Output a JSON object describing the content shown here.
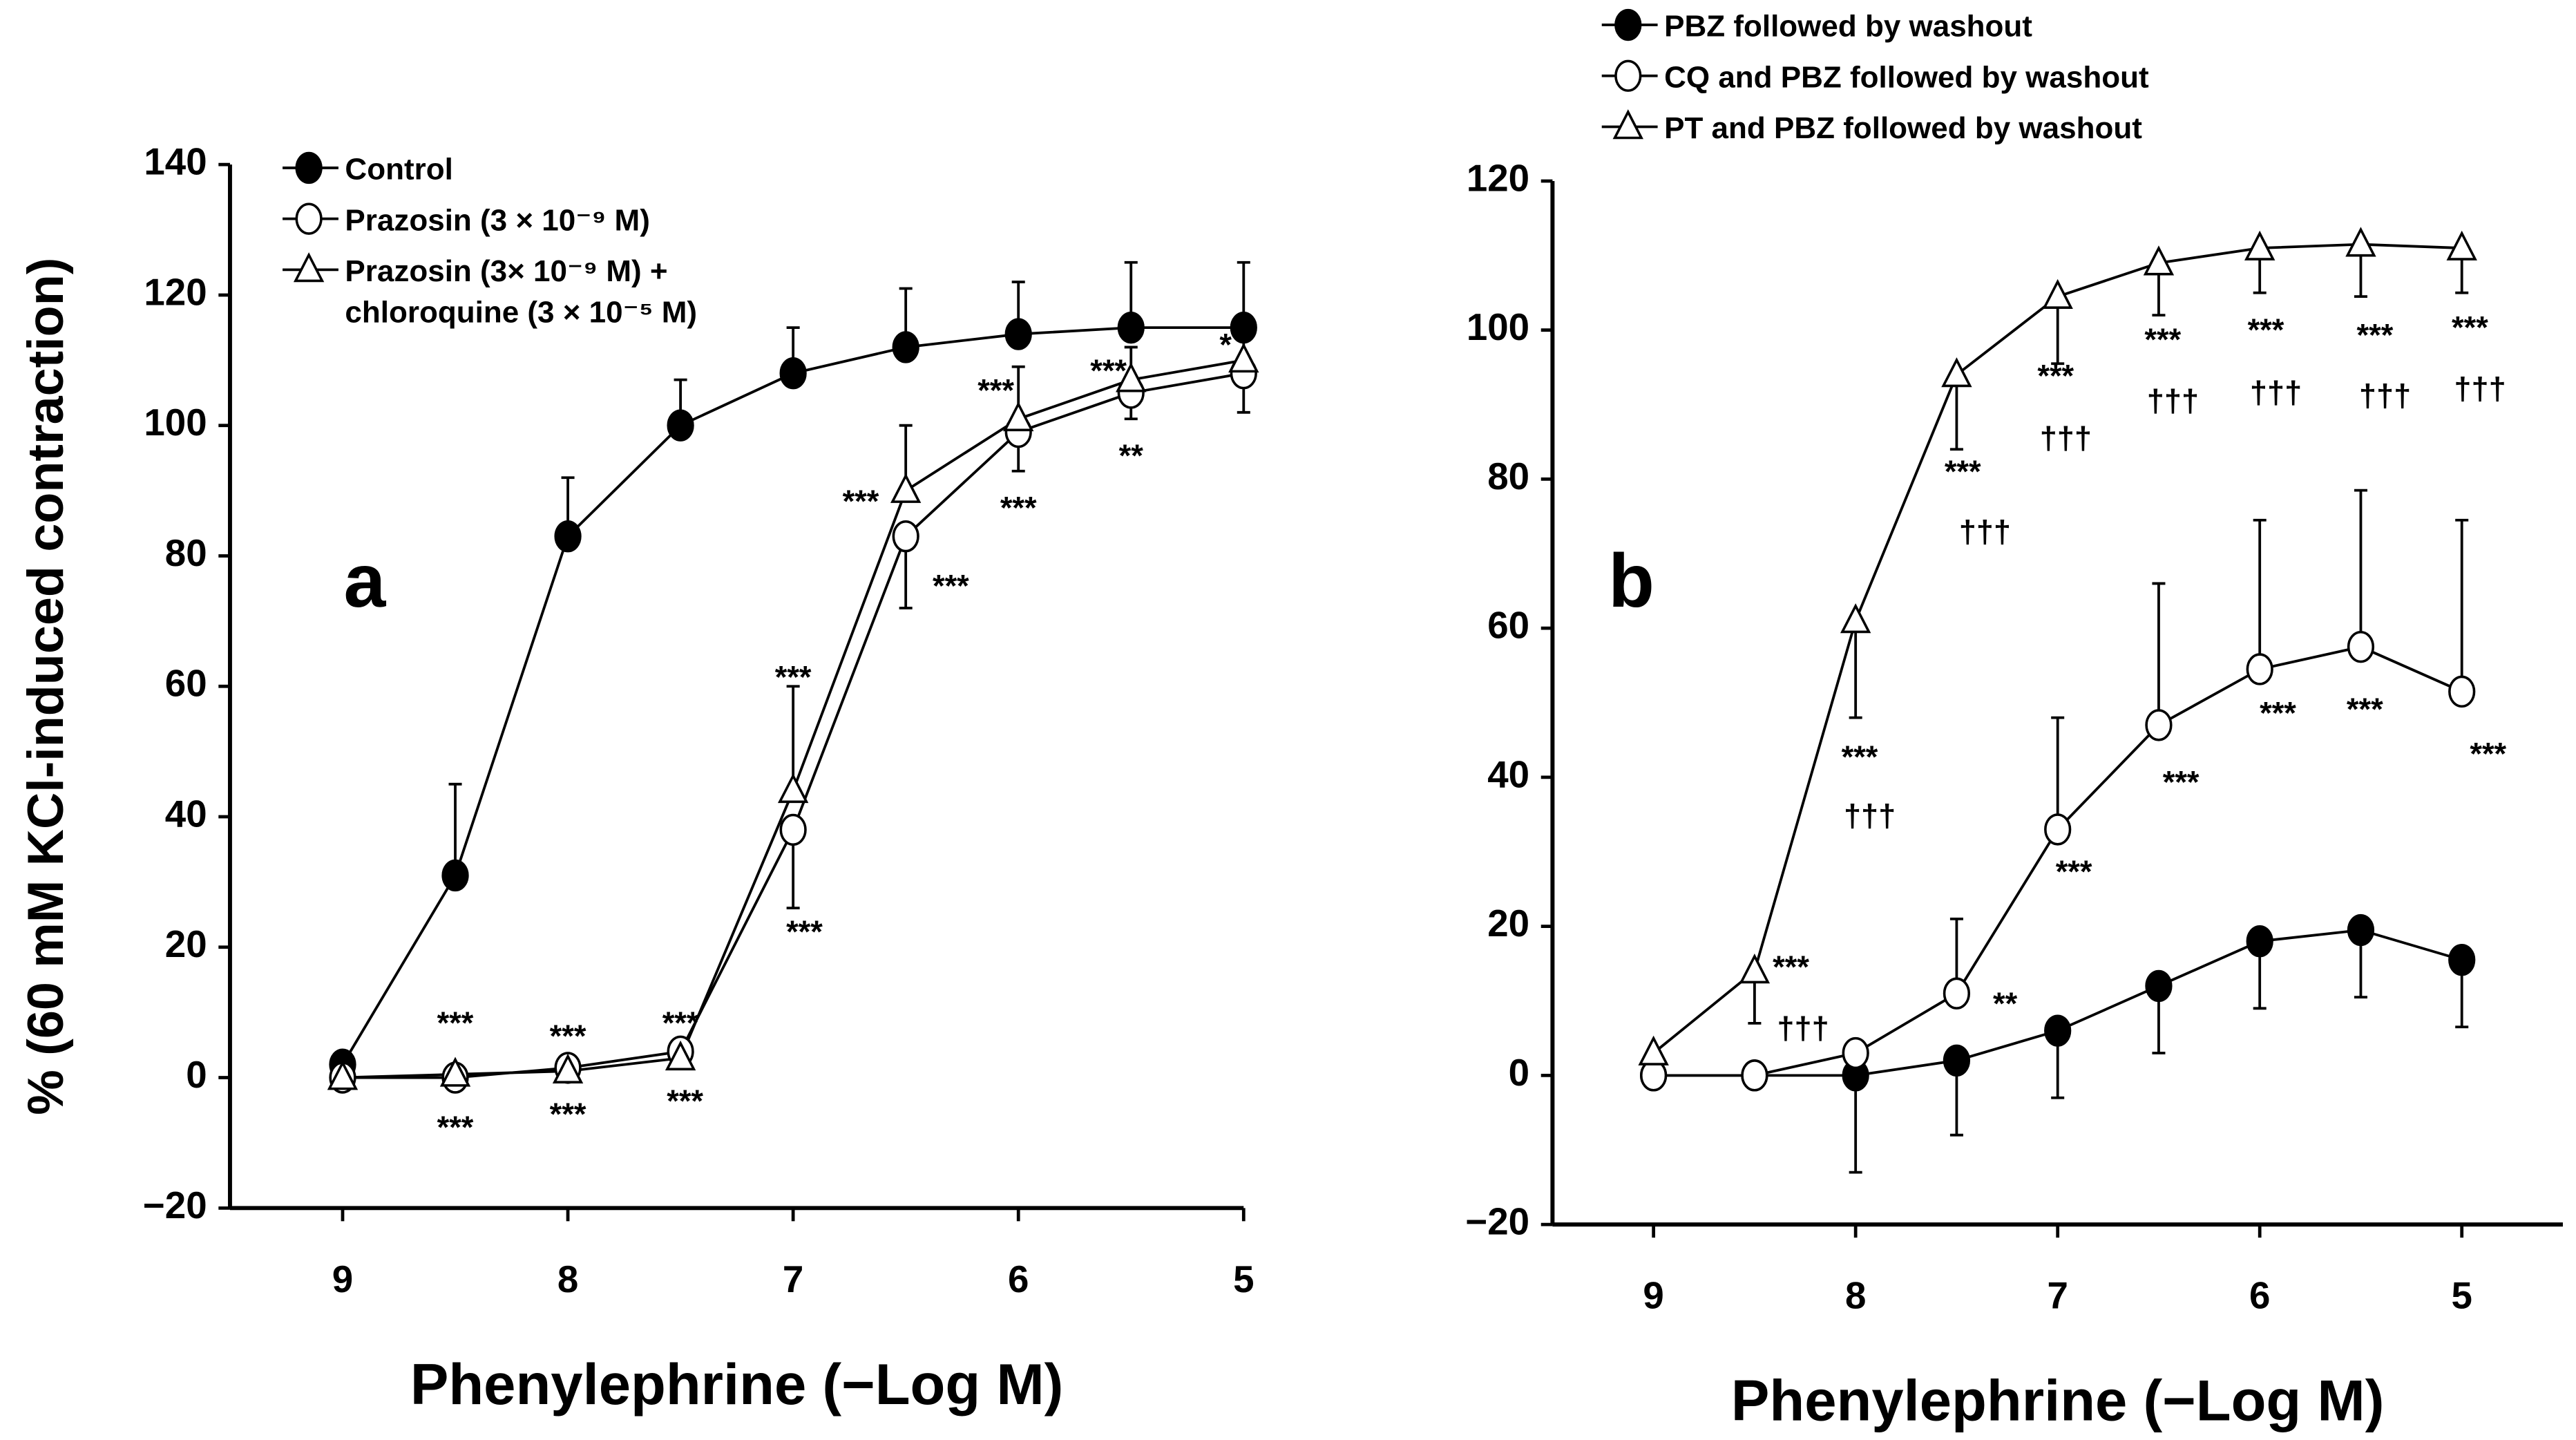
{
  "chart_data": [
    {
      "type": "line",
      "panel_label": "a",
      "xlabel": "Phenylephrine (−Log M)",
      "ylabel": "% (60 mM KCl-induced contraction)",
      "xlim": [
        9.5,
        5
      ],
      "xticks": [
        9,
        8,
        7,
        6,
        5
      ],
      "ylim": [
        -20,
        140
      ],
      "yticks": [
        {
          "value": -20,
          "label": "−20"
        },
        0,
        20,
        40,
        60,
        80,
        100,
        120,
        140
      ],
      "legend": "upper left",
      "x": [
        9,
        8.5,
        8,
        7.5,
        7,
        6.5,
        6,
        5.5,
        5
      ],
      "series": [
        {
          "name": "Control",
          "color": "#000000",
          "marker": "circle-filled",
          "error_direction": "up",
          "values": [
            2,
            31,
            83,
            100,
            108,
            112,
            114,
            115,
            115
          ],
          "errors": [
            1,
            14,
            9,
            7,
            7,
            9,
            8,
            10,
            10
          ]
        },
        {
          "name": "Prazosin (3 × 10⁻⁹ M)",
          "color": "#000000",
          "marker": "circle-open",
          "error_direction": "down",
          "values": [
            0,
            0,
            1.5,
            4,
            38,
            83,
            99,
            105,
            108
          ],
          "errors": [
            1,
            1,
            1,
            2,
            12,
            11,
            6,
            4,
            6
          ]
        },
        {
          "name": "Prazosin (3× 10⁻⁹ M) +\nchloroquine (3 × 10⁻⁵ M)",
          "color": "#000000",
          "marker": "triangle-open",
          "error_direction": "up",
          "values": [
            0,
            0.5,
            1,
            3,
            44,
            90,
            101,
            107,
            110
          ],
          "errors": [
            0,
            0,
            0,
            1,
            16,
            10,
            8,
            5,
            6
          ]
        }
      ],
      "annotations": [
        {
          "text": "***",
          "x": 8.5,
          "y": 8
        },
        {
          "text": "***",
          "x": 8.5,
          "y": -8
        },
        {
          "text": "***",
          "x": 8,
          "y": 6
        },
        {
          "text": "***",
          "x": 8,
          "y": -6
        },
        {
          "text": "***",
          "x": 7.5,
          "y": 8
        },
        {
          "text": "***",
          "x": 7.48,
          "y": -4
        },
        {
          "text": "***",
          "x": 7,
          "y": 61
        },
        {
          "text": "***",
          "x": 6.95,
          "y": 22
        },
        {
          "text": "***",
          "x": 6.7,
          "y": 88
        },
        {
          "text": "***",
          "x": 6.3,
          "y": 75
        },
        {
          "text": "***",
          "x": 6.1,
          "y": 105
        },
        {
          "text": "***",
          "x": 6,
          "y": 87
        },
        {
          "text": "***",
          "x": 5.6,
          "y": 108
        },
        {
          "text": "**",
          "x": 5.5,
          "y": 95
        },
        {
          "text": "*",
          "x": 5.08,
          "y": 112
        }
      ]
    },
    {
      "type": "line",
      "panel_label": "b",
      "xlabel": "Phenylephrine (−Log M)",
      "xlim": [
        9.5,
        4.5
      ],
      "xticks": [
        9,
        8,
        7,
        6,
        5
      ],
      "ylim": [
        -20,
        120
      ],
      "yticks": [
        {
          "value": -20,
          "label": "−20"
        },
        0,
        20,
        40,
        60,
        80,
        100,
        120
      ],
      "legend": "upper left",
      "x": [
        9,
        8.5,
        8,
        7.5,
        7,
        6.5,
        6,
        5.5,
        5
      ],
      "series": [
        {
          "name": "PBZ followed by washout",
          "color": "#000000",
          "marker": "circle-filled",
          "error_direction": "down",
          "values": [
            0,
            0,
            0,
            2,
            6,
            12,
            18,
            19.5,
            15.5
          ],
          "errors": [
            0,
            0,
            13,
            10,
            9,
            9,
            9,
            9,
            9
          ]
        },
        {
          "name": "CQ and PBZ followed by washout",
          "color": "#000000",
          "marker": "circle-open",
          "error_direction": "up",
          "values": [
            0,
            0,
            3,
            11,
            33,
            47,
            54.5,
            57.5,
            51.5
          ],
          "errors": [
            0,
            0,
            0,
            10,
            15,
            19,
            20,
            21,
            23
          ]
        },
        {
          "name": "PT and PBZ followed by washout",
          "color": "#000000",
          "marker": "triangle-open",
          "error_direction": "down",
          "values": [
            3,
            14,
            61,
            94,
            104.5,
            109,
            111,
            111.5,
            111
          ],
          "errors": [
            0,
            7,
            13,
            10,
            9,
            7,
            6,
            7,
            6
          ]
        }
      ],
      "annotations": [
        {
          "text": "***",
          "x": 8.32,
          "y": 14.2
        },
        {
          "text": "†††",
          "x": 8.26,
          "y": 6
        },
        {
          "text": "***",
          "x": 7.98,
          "y": 42.4
        },
        {
          "text": "†††",
          "x": 7.93,
          "y": 34.5
        },
        {
          "text": "***",
          "x": 7.47,
          "y": 80.7
        },
        {
          "text": "†††",
          "x": 7.36,
          "y": 72.6
        },
        {
          "text": "***",
          "x": 7.01,
          "y": 93.5
        },
        {
          "text": "†††",
          "x": 6.96,
          "y": 85.2
        },
        {
          "text": "***",
          "x": 6.48,
          "y": 98.4
        },
        {
          "text": "†††",
          "x": 6.43,
          "y": 90.2
        },
        {
          "text": "***",
          "x": 5.97,
          "y": 99.7
        },
        {
          "text": "†††",
          "x": 5.92,
          "y": 91.3
        },
        {
          "text": "***",
          "x": 5.43,
          "y": 99
        },
        {
          "text": "†††",
          "x": 5.38,
          "y": 90.9
        },
        {
          "text": "***",
          "x": 4.96,
          "y": 100
        },
        {
          "text": "†††",
          "x": 4.91,
          "y": 91.8
        },
        {
          "text": "**",
          "x": 7.26,
          "y": 9.3
        },
        {
          "text": "***",
          "x": 6.92,
          "y": 27
        },
        {
          "text": "***",
          "x": 6.39,
          "y": 39
        },
        {
          "text": "***",
          "x": 5.91,
          "y": 48.3
        },
        {
          "text": "***",
          "x": 5.48,
          "y": 48.8
        },
        {
          "text": "***",
          "x": 4.87,
          "y": 42.8
        }
      ]
    }
  ]
}
